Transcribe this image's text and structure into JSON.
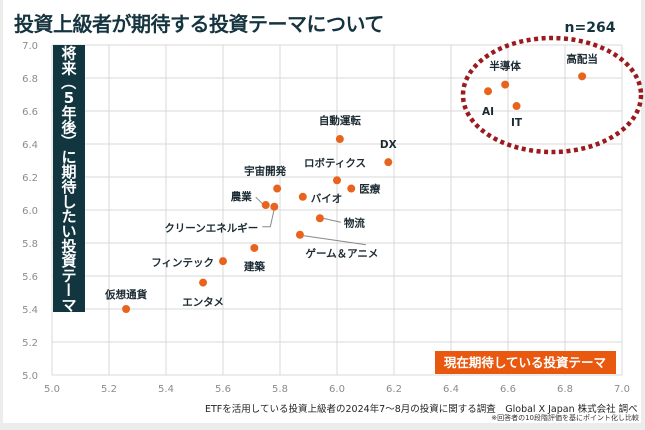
{
  "title": "投資上級者が期待する投資テーマについて",
  "footer": {
    "source": "ETFを活用している投資上級者の2024年7～8月の投資に関する調査　Global X Japan 株式会社 調べ",
    "note": "※回答者の10段階評価を基にポイント化し比較"
  },
  "colors": {
    "point": "#e8641e",
    "title": "#163440",
    "ylabel_box": "#123640",
    "xlabel_box": "#e8580f",
    "highlight_ellipse": "#9b1a1e",
    "grid": "#d9d9d9",
    "tick": "#8c8c8c"
  },
  "chart_data": {
    "type": "scatter",
    "title": "投資上級者が期待する投資テーマについて",
    "xlabel": "現在期待している投資テーマ",
    "ylabel": "将来（5年後）に期待したい投資テーマ",
    "annotation": "n=264",
    "xlim": [
      5.0,
      7.0
    ],
    "ylim": [
      5.0,
      7.0
    ],
    "xticks": [
      "5.0",
      "5.2",
      "5.4",
      "5.6",
      "5.8",
      "6.0",
      "6.2",
      "6.4",
      "6.6",
      "6.8",
      "7.0"
    ],
    "yticks": [
      "5.0",
      "5.2",
      "5.4",
      "5.6",
      "5.8",
      "6.0",
      "6.2",
      "6.4",
      "6.6",
      "6.8",
      "7.0"
    ],
    "grid": true,
    "highlight": "dotted ellipse around 高配当, 半導体, AI, IT (top-right)",
    "points": [
      {
        "label": "高配当",
        "x": 6.86,
        "y": 6.81
      },
      {
        "label": "半導体",
        "x": 6.59,
        "y": 6.76
      },
      {
        "label": "AI",
        "x": 6.53,
        "y": 6.72
      },
      {
        "label": "IT",
        "x": 6.63,
        "y": 6.63
      },
      {
        "label": "自動運転",
        "x": 6.01,
        "y": 6.43
      },
      {
        "label": "DX",
        "x": 6.18,
        "y": 6.29
      },
      {
        "label": "ロボティクス",
        "x": 6.0,
        "y": 6.18
      },
      {
        "label": "医療",
        "x": 6.05,
        "y": 6.13
      },
      {
        "label": "宇宙開発",
        "x": 5.79,
        "y": 6.13
      },
      {
        "label": "バイオ",
        "x": 5.88,
        "y": 6.08
      },
      {
        "label": "農業",
        "x": 5.75,
        "y": 6.03
      },
      {
        "label": "クリーンエネルギー",
        "x": 5.78,
        "y": 6.02
      },
      {
        "label": "物流",
        "x": 5.94,
        "y": 5.95
      },
      {
        "label": "ゲーム＆アニメ",
        "x": 5.87,
        "y": 5.85
      },
      {
        "label": "建築",
        "x": 5.71,
        "y": 5.77
      },
      {
        "label": "フィンテック",
        "x": 5.6,
        "y": 5.69
      },
      {
        "label": "エンタメ",
        "x": 5.53,
        "y": 5.56
      },
      {
        "label": "仮想通貨",
        "x": 5.26,
        "y": 5.4
      }
    ]
  }
}
